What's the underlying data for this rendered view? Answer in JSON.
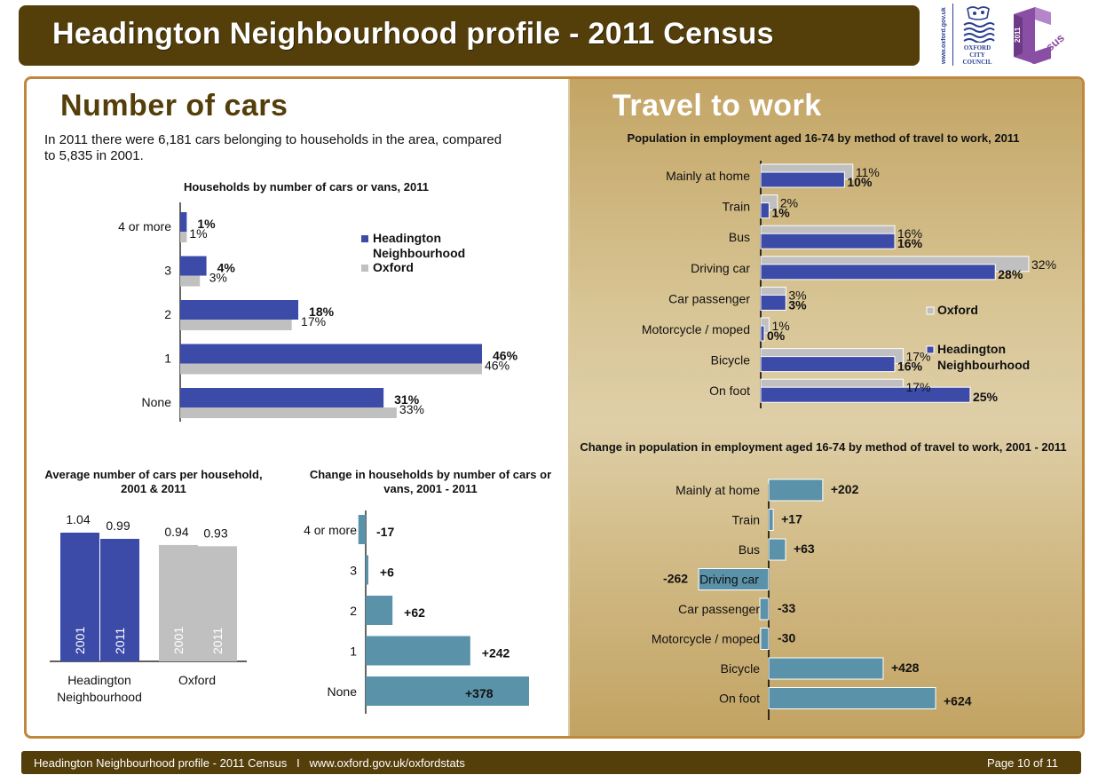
{
  "header": {
    "title": "Headington Neighbourhood profile - 2011 Census",
    "logo_council_url": "www.oxford.gov.uk",
    "logo_council_name": [
      "OXFORD",
      "CITY",
      "COUNCIL"
    ],
    "logo_census_year": "2011",
    "logo_census_word": "Census"
  },
  "colors": {
    "brand_brown": "#543e0a",
    "frame_orange": "#c0873e",
    "headington_blue": "#3c4aa8",
    "oxford_grey": "#c0c0c0",
    "change_teal": "#5a92aa",
    "census_purple": "#8a4fa5"
  },
  "left_section": {
    "title": "Number of cars",
    "intro": "In 2011 there were 6,181 cars belonging to households in the area, compared to 5,835 in 2001."
  },
  "right_section": {
    "title": "Travel to work"
  },
  "footer": {
    "left_text": "Headington Neighbourhood profile - 2011 Census   I   www.oxford.gov.uk/oxfordstats",
    "page": "Page 10 of 11"
  },
  "chart_data": [
    {
      "id": "households_by_cars",
      "type": "bar",
      "orientation": "horizontal",
      "title": "Households by number of cars or vans, 2011",
      "categories": [
        "4 or more",
        "3",
        "2",
        "1",
        "None"
      ],
      "series": [
        {
          "name": "Headington Neighbourhood",
          "values": [
            1,
            4,
            18,
            46,
            31
          ],
          "labels": [
            "1%",
            "4%",
            "18%",
            "46%",
            "31%"
          ]
        },
        {
          "name": "Oxford",
          "values": [
            1,
            3,
            17,
            46,
            33
          ],
          "labels": [
            "1%",
            "3%",
            "17%",
            "46%",
            "33%"
          ]
        }
      ],
      "legend": [
        "Headington Neighbourhood",
        "Oxford"
      ],
      "legend_position": "top-right",
      "xlim": [
        0,
        50
      ],
      "unit": "%"
    },
    {
      "id": "avg_cars_per_household",
      "type": "bar",
      "orientation": "vertical",
      "title": "Average number of cars per household, 2001 & 2011",
      "groups": [
        "Headington Neighbourhood",
        "Oxford"
      ],
      "bars": [
        {
          "group": "Headington Neighbourhood",
          "year": "2001",
          "value": 1.04,
          "label": "1.04"
        },
        {
          "group": "Headington Neighbourhood",
          "year": "2011",
          "value": 0.99,
          "label": "0.99"
        },
        {
          "group": "Oxford",
          "year": "2001",
          "value": 0.94,
          "label": "0.94"
        },
        {
          "group": "Oxford",
          "year": "2011",
          "value": 0.93,
          "label": "0.93"
        }
      ],
      "ylim": [
        0,
        1.2
      ]
    },
    {
      "id": "change_households_by_cars",
      "type": "bar",
      "orientation": "horizontal",
      "title": "Change in households by number of cars or vans, 2001 - 2011",
      "categories": [
        "4 or more",
        "3",
        "2",
        "1",
        "None"
      ],
      "values": [
        -17,
        6,
        62,
        242,
        378
      ],
      "labels": [
        "-17",
        "+6",
        "+62",
        "+242",
        "+378"
      ],
      "xlim": [
        -20,
        400
      ]
    },
    {
      "id": "travel_to_work_2011",
      "type": "bar",
      "orientation": "horizontal",
      "title": "Population in employment aged 16-74 by method of travel to work, 2011",
      "categories": [
        "Mainly at home",
        "Train",
        "Bus",
        "Driving car",
        "Car passenger",
        "Motorcycle / moped",
        "Bicycle",
        "On foot"
      ],
      "series": [
        {
          "name": "Oxford",
          "values": [
            11,
            2,
            16,
            32,
            3,
            1,
            17,
            17
          ],
          "labels": [
            "11%",
            "2%",
            "16%",
            "32%",
            "3%",
            "1%",
            "17%",
            "17%"
          ]
        },
        {
          "name": "Headington Neighbourhood",
          "values": [
            10,
            1,
            16,
            28,
            3,
            0,
            16,
            25
          ],
          "labels": [
            "10%",
            "1%",
            "16%",
            "28%",
            "3%",
            "0%",
            "16%",
            "25%"
          ]
        }
      ],
      "legend": [
        "Oxford",
        "Headington Neighbourhood"
      ],
      "legend_position": "right",
      "xlim": [
        0,
        35
      ],
      "unit": "%"
    },
    {
      "id": "change_travel_to_work",
      "type": "bar",
      "orientation": "horizontal",
      "title": "Change in population in employment aged 16-74 by method of travel to work, 2001 - 2011",
      "categories": [
        "Mainly at home",
        "Train",
        "Bus",
        "Driving car",
        "Car passenger",
        "Motorcycle / moped",
        "Bicycle",
        "On foot"
      ],
      "values": [
        202,
        17,
        63,
        -262,
        -33,
        -30,
        428,
        624
      ],
      "labels": [
        "+202",
        "+17",
        "+63",
        "-262",
        "-33",
        "-30",
        "+428",
        "+624"
      ],
      "xlim": [
        -270,
        700
      ]
    }
  ]
}
